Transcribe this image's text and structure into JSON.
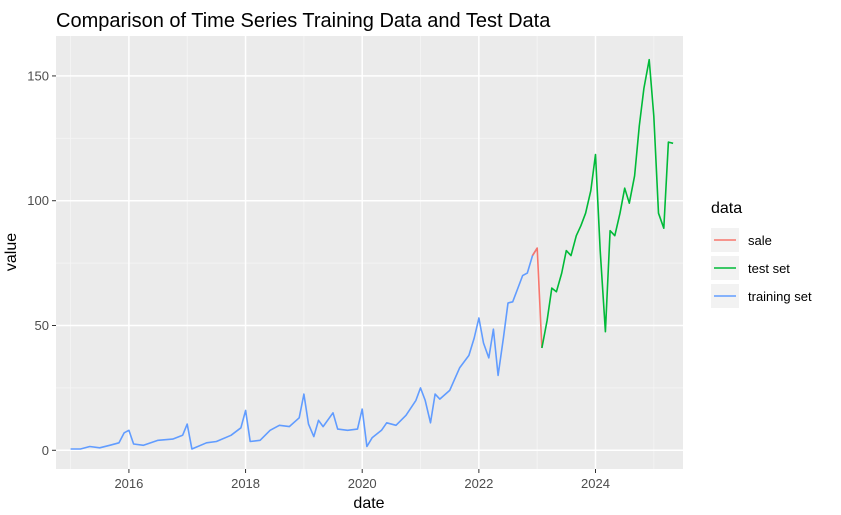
{
  "chart_data": {
    "type": "line",
    "title": "Comparison of Time Series Training Data and Test Data",
    "xlabel": "date",
    "ylabel": "value",
    "xlim": [
      2014.75,
      2025.5
    ],
    "ylim": [
      -7.5,
      166
    ],
    "x_ticks": [
      2016,
      2018,
      2020,
      2022,
      2024
    ],
    "y_ticks": [
      0,
      50,
      100,
      150
    ],
    "x_tick_labels": [
      "2016",
      "2018",
      "2020",
      "2022",
      "2024"
    ],
    "y_tick_labels": [
      "0",
      "50",
      "100",
      "150"
    ],
    "grid": true,
    "legend": {
      "title": "data",
      "position": "right"
    },
    "series": [
      {
        "name": "training set",
        "color": "#619CFF",
        "points": [
          [
            2015.0,
            0.5
          ],
          [
            2015.17,
            0.5
          ],
          [
            2015.33,
            1.5
          ],
          [
            2015.5,
            1.0
          ],
          [
            2015.67,
            2.0
          ],
          [
            2015.83,
            3.0
          ],
          [
            2015.92,
            7.0
          ],
          [
            2016.0,
            8.0
          ],
          [
            2016.08,
            2.5
          ],
          [
            2016.25,
            2.0
          ],
          [
            2016.5,
            4.0
          ],
          [
            2016.75,
            4.5
          ],
          [
            2016.92,
            6.0
          ],
          [
            2017.0,
            10.5
          ],
          [
            2017.08,
            0.5
          ],
          [
            2017.33,
            3.0
          ],
          [
            2017.5,
            3.5
          ],
          [
            2017.75,
            6.0
          ],
          [
            2017.92,
            9.0
          ],
          [
            2018.0,
            16.0
          ],
          [
            2018.08,
            3.5
          ],
          [
            2018.25,
            4.0
          ],
          [
            2018.42,
            8.0
          ],
          [
            2018.58,
            10.0
          ],
          [
            2018.75,
            9.5
          ],
          [
            2018.92,
            13.0
          ],
          [
            2019.0,
            22.5
          ],
          [
            2019.08,
            10.5
          ],
          [
            2019.17,
            5.5
          ],
          [
            2019.25,
            12.0
          ],
          [
            2019.33,
            9.5
          ],
          [
            2019.5,
            15.0
          ],
          [
            2019.58,
            8.5
          ],
          [
            2019.75,
            8.0
          ],
          [
            2019.92,
            8.5
          ],
          [
            2020.0,
            16.5
          ],
          [
            2020.08,
            1.5
          ],
          [
            2020.17,
            5.0
          ],
          [
            2020.33,
            8.0
          ],
          [
            2020.42,
            11.0
          ],
          [
            2020.58,
            10.0
          ],
          [
            2020.75,
            14.0
          ],
          [
            2020.92,
            20.0
          ],
          [
            2021.0,
            25.0
          ],
          [
            2021.08,
            20.0
          ],
          [
            2021.17,
            11.0
          ],
          [
            2021.25,
            22.5
          ],
          [
            2021.33,
            20.5
          ],
          [
            2021.5,
            24.0
          ],
          [
            2021.67,
            33.0
          ],
          [
            2021.83,
            38.0
          ],
          [
            2021.92,
            45.0
          ],
          [
            2022.0,
            53.0
          ],
          [
            2022.08,
            43.0
          ],
          [
            2022.17,
            37.0
          ],
          [
            2022.25,
            48.5
          ],
          [
            2022.33,
            30.0
          ],
          [
            2022.42,
            45.0
          ],
          [
            2022.5,
            59.0
          ],
          [
            2022.58,
            59.5
          ],
          [
            2022.67,
            65.0
          ],
          [
            2022.75,
            70.0
          ],
          [
            2022.83,
            71.0
          ],
          [
            2022.92,
            78.0
          ],
          [
            2023.0,
            81.0
          ]
        ]
      },
      {
        "name": "sale",
        "color": "#F8766D",
        "points": [
          [
            2022.92,
            78.0
          ],
          [
            2023.0,
            81.0
          ],
          [
            2023.08,
            41.0
          ]
        ]
      },
      {
        "name": "test set",
        "color": "#00BA38",
        "points": [
          [
            2023.08,
            41.0
          ],
          [
            2023.17,
            52.0
          ],
          [
            2023.25,
            65.0
          ],
          [
            2023.33,
            63.5
          ],
          [
            2023.42,
            71.0
          ],
          [
            2023.5,
            80.0
          ],
          [
            2023.58,
            78.0
          ],
          [
            2023.67,
            86.0
          ],
          [
            2023.75,
            90.0
          ],
          [
            2023.83,
            95.0
          ],
          [
            2023.92,
            104.0
          ],
          [
            2024.0,
            118.5
          ],
          [
            2024.08,
            80.0
          ],
          [
            2024.17,
            47.5
          ],
          [
            2024.25,
            88.0
          ],
          [
            2024.33,
            86.0
          ],
          [
            2024.42,
            95.0
          ],
          [
            2024.5,
            105.0
          ],
          [
            2024.58,
            99.0
          ],
          [
            2024.67,
            110.0
          ],
          [
            2024.75,
            130.0
          ],
          [
            2024.83,
            145.0
          ],
          [
            2024.92,
            156.5
          ],
          [
            2025.0,
            134.0
          ],
          [
            2025.08,
            95.0
          ],
          [
            2025.17,
            89.0
          ],
          [
            2025.25,
            123.5
          ],
          [
            2025.33,
            123.0
          ]
        ]
      }
    ]
  }
}
